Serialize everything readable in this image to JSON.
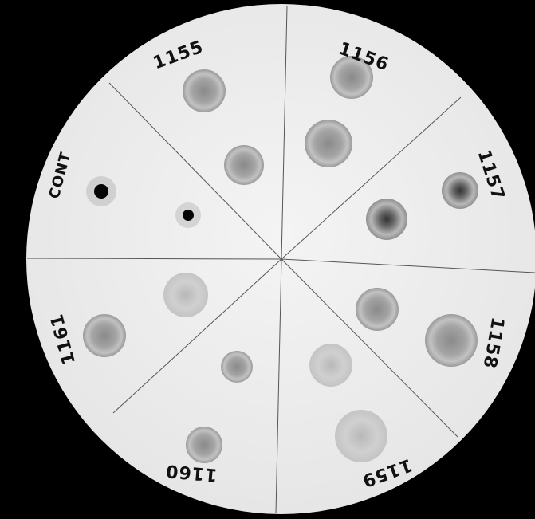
{
  "labels": [
    "1155",
    "1156",
    "1157",
    "1158",
    "1159",
    "1160",
    "1161",
    "CONT"
  ]
}
